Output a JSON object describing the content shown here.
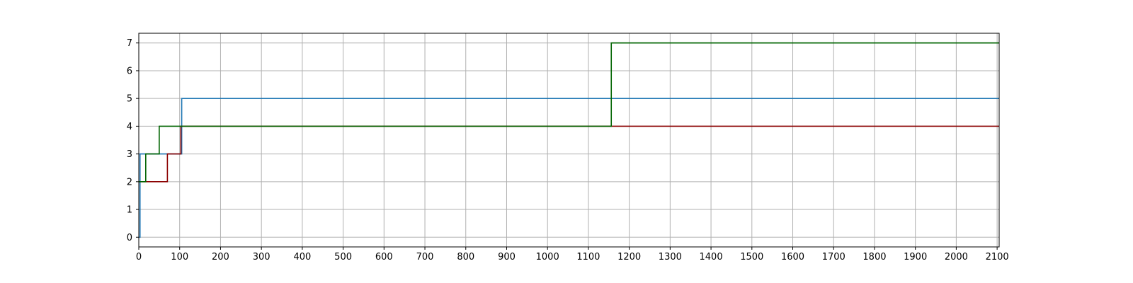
{
  "chart_data": {
    "type": "line",
    "step": "post",
    "title": "",
    "xlabel": "",
    "ylabel": "",
    "xlim": [
      0,
      2105
    ],
    "ylim": [
      -0.35,
      7.35
    ],
    "x_ticks": [
      0,
      100,
      200,
      300,
      400,
      500,
      600,
      700,
      800,
      900,
      1000,
      1100,
      1200,
      1300,
      1400,
      1500,
      1600,
      1700,
      1800,
      1900,
      2000,
      2100
    ],
    "y_ticks": [
      0,
      1,
      2,
      3,
      4,
      5,
      6,
      7
    ],
    "grid": true,
    "legend": "none",
    "series": [
      {
        "color": "#1f77b4",
        "points": [
          [
            0,
            0
          ],
          [
            3,
            3
          ],
          [
            105,
            5
          ],
          [
            2105,
            5
          ]
        ]
      },
      {
        "color": "#8b0000",
        "points": [
          [
            0,
            2
          ],
          [
            70,
            3
          ],
          [
            103,
            4
          ],
          [
            2105,
            4
          ]
        ]
      },
      {
        "color": "#006400",
        "points": [
          [
            0,
            2
          ],
          [
            17,
            3
          ],
          [
            50,
            4
          ],
          [
            1156,
            7
          ],
          [
            2105,
            7
          ]
        ]
      }
    ]
  }
}
